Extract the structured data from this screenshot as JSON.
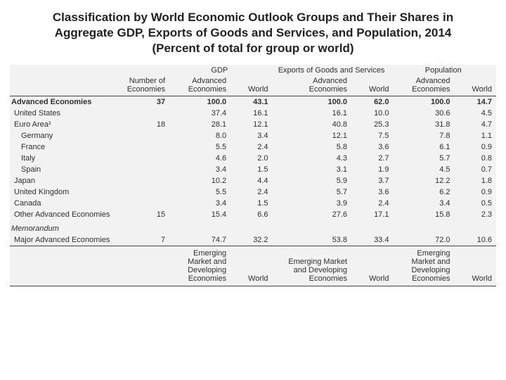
{
  "title_l1": "Classification by World Economic Outlook Groups and Their Shares in",
  "title_l2": "Aggregate GDP, Exports of Goods and Services, and Population, 2014",
  "title_l3": "(Percent of total for group or world)",
  "style": {
    "background": "#ffffff",
    "table_bg": "#f2f2f2",
    "rule_color": "#444444",
    "text_color": "#2f2f2f",
    "title_fontsize": 17,
    "body_fontsize": 11
  },
  "hdr": {
    "num_econ": "Number of Economies",
    "gdp": "GDP",
    "exp": "Exports of Goods and Services",
    "pop": "Population",
    "adv": "Advanced Economies",
    "world": "World",
    "emd": "Emerging Market and Developing Economies"
  },
  "rows": [
    {
      "label": "Advanced Economies",
      "bold": true,
      "rule": true,
      "ind": 0,
      "n": "37",
      "v": [
        "100.0",
        "43.1",
        "100.0",
        "62.0",
        "100.0",
        "14.7"
      ]
    },
    {
      "label": "United States",
      "ind": 1,
      "n": "",
      "v": [
        "37.4",
        "16.1",
        "16.1",
        "10.0",
        "30.6",
        "4.5"
      ]
    },
    {
      "label": "Euro Area²",
      "ind": 1,
      "n": "18",
      "v": [
        "28.1",
        "12.1",
        "40.8",
        "25.3",
        "31.8",
        "4.7"
      ]
    },
    {
      "label": "Germany",
      "ind": 2,
      "n": "",
      "v": [
        "8.0",
        "3.4",
        "12.1",
        "7.5",
        "7.8",
        "1.1"
      ]
    },
    {
      "label": "France",
      "ind": 2,
      "n": "",
      "v": [
        "5.5",
        "2.4",
        "5.8",
        "3.6",
        "6.1",
        "0.9"
      ]
    },
    {
      "label": "Italy",
      "ind": 2,
      "n": "",
      "v": [
        "4.6",
        "2.0",
        "4.3",
        "2.7",
        "5.7",
        "0.8"
      ]
    },
    {
      "label": "Spain",
      "ind": 2,
      "n": "",
      "v": [
        "3.4",
        "1.5",
        "3.1",
        "1.9",
        "4.5",
        "0.7"
      ]
    },
    {
      "label": "Japan",
      "ind": 1,
      "n": "",
      "v": [
        "10.2",
        "4.4",
        "5.9",
        "3.7",
        "12.2",
        "1.8"
      ]
    },
    {
      "label": "United Kingdom",
      "ind": 1,
      "n": "",
      "v": [
        "5.5",
        "2.4",
        "5.7",
        "3.6",
        "6.2",
        "0.9"
      ]
    },
    {
      "label": "Canada",
      "ind": 1,
      "n": "",
      "v": [
        "3.4",
        "1.5",
        "3.9",
        "2.4",
        "3.4",
        "0.5"
      ]
    },
    {
      "label": "Other Advanced Economies",
      "ind": 1,
      "n": "15",
      "v": [
        "15.4",
        "6.6",
        "27.6",
        "17.1",
        "15.8",
        "2.3"
      ]
    }
  ],
  "memo_hdr": "Memorandum",
  "memo": {
    "label": "Major Advanced Economies",
    "n": "7",
    "v": [
      "74.7",
      "32.2",
      "53.8",
      "33.4",
      "72.0",
      "10.6"
    ]
  }
}
